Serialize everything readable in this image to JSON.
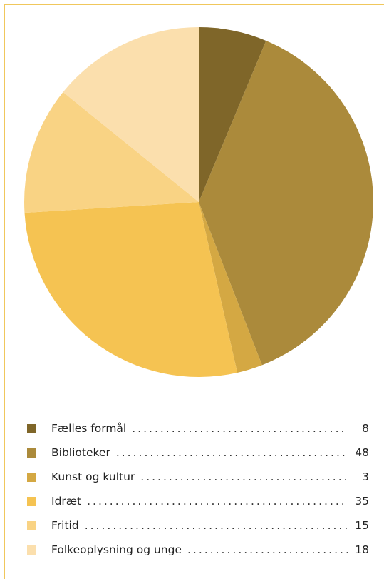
{
  "chart_data": {
    "type": "pie",
    "slices": [
      {
        "label": "Fælles formål",
        "value": 8,
        "color": "#7f6629"
      },
      {
        "label": "Biblioteker",
        "value": 48,
        "color": "#ab8a3b"
      },
      {
        "label": "Kunst og kultur",
        "value": 3,
        "color": "#d4a843"
      },
      {
        "label": "Idræt",
        "value": 35,
        "color": "#f5c352"
      },
      {
        "label": "Fritid",
        "value": 15,
        "color": "#f9d384"
      },
      {
        "label": "Folkeoplysning og unge",
        "value": 18,
        "color": "#fbdfad"
      }
    ],
    "legend_position": "bottom"
  },
  "legend": [
    {
      "label": "Fælles formål",
      "value": "8"
    },
    {
      "label": "Biblioteker",
      "value": "48"
    },
    {
      "label": "Kunst og kultur",
      "value": "3"
    },
    {
      "label": "Idræt",
      "value": "35"
    },
    {
      "label": "Fritid",
      "value": "15"
    },
    {
      "label": "Folkeoplysning og unge",
      "value": "18"
    }
  ],
  "colors": {
    "frame": "#f0c75c"
  }
}
